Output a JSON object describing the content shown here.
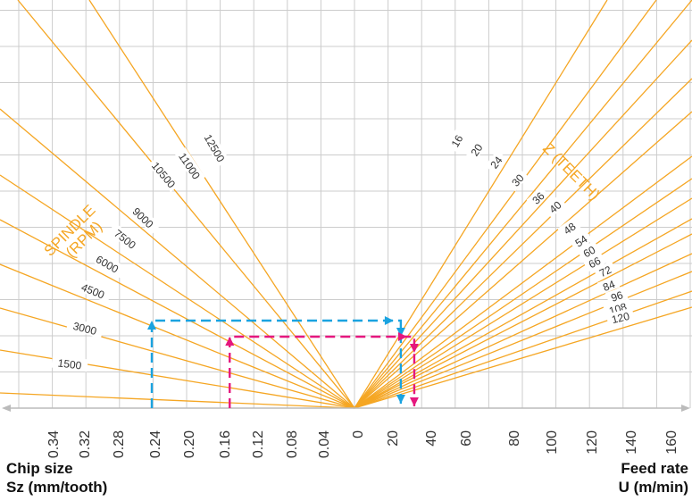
{
  "chart_data": {
    "type": "nomogram",
    "xlabel_left": {
      "line1": "Chip size",
      "line2": "Sz (mm/tooth)"
    },
    "xlabel_right": {
      "line1": "Feed rate",
      "line2": "U (m/min)"
    },
    "left_ticks": [
      "0.34",
      "0.32",
      "0.28",
      "0.24",
      "0.20",
      "0.16",
      "0.12",
      "0.08",
      "0.04"
    ],
    "zero_label": "0",
    "right_ticks": [
      "20",
      "40",
      "60",
      "80",
      "100",
      "120",
      "140",
      "160"
    ],
    "spindle": {
      "title_line1": "SPINDLE",
      "title_line2": "(RPM)",
      "speeds": [
        "1500",
        "3000",
        "4500",
        "6000",
        "7500",
        "9000",
        "10500",
        "11000",
        "12500"
      ]
    },
    "teeth": {
      "title": "Z (TEETH)",
      "counts": [
        "16",
        "20",
        "24",
        "30",
        "36",
        "40",
        "48",
        "54",
        "60",
        "66",
        "72",
        "84",
        "96",
        "108",
        "120"
      ]
    },
    "examples": [
      {
        "color": "#1aa3e0",
        "chip_size": 0.24,
        "feed_rate": 26
      },
      {
        "color": "#e5177e",
        "chip_size": 0.15,
        "feed_rate": 33
      }
    ],
    "grid": true,
    "colors": {
      "lines": "#f5a623",
      "grid": "#cccccc",
      "axis": "#bbbbbb"
    }
  }
}
